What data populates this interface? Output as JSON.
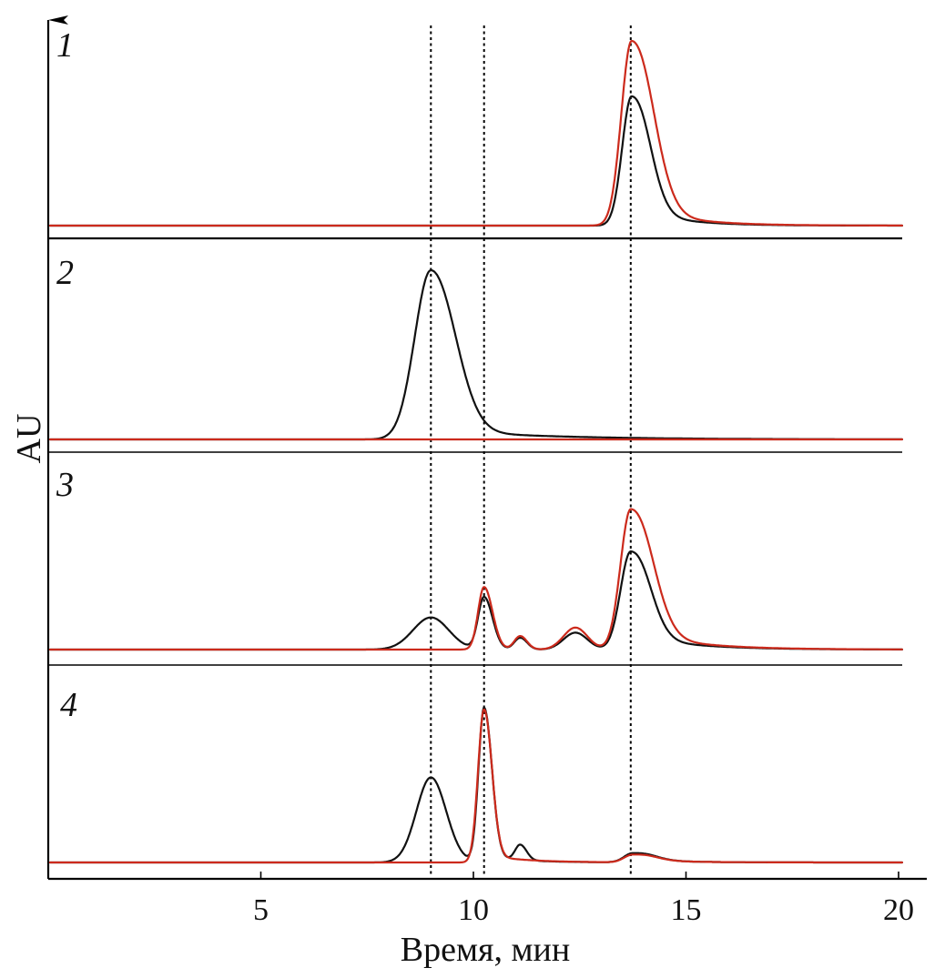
{
  "chart_data": {
    "type": "line",
    "xlabel": "Время, мин",
    "ylabel": "AU",
    "xlim": [
      0,
      20.7
    ],
    "x_ticks": [
      5,
      10,
      15,
      20
    ],
    "reference_lines_x": [
      9.0,
      10.25,
      13.7
    ],
    "series_colors": {
      "black": "#111111",
      "red": "#cc2a1c"
    },
    "panels": [
      {
        "label": "1",
        "traces": [
          {
            "color": "black",
            "baseline": 0.0,
            "peaks": [
              {
                "center": 13.72,
                "height": 0.7,
                "width_left": 0.22,
                "width_right": 0.4,
                "tail": 0.1,
                "tail_decay": 1.0
              }
            ]
          },
          {
            "color": "red",
            "baseline": 0.0,
            "peaks": [
              {
                "center": 13.72,
                "height": 1.0,
                "width_left": 0.24,
                "width_right": 0.48,
                "tail": 0.12,
                "tail_decay": 1.1
              }
            ]
          }
        ]
      },
      {
        "label": "2",
        "traces": [
          {
            "color": "black",
            "baseline": 0.0,
            "peaks": [
              {
                "center": 9.0,
                "height": 1.0,
                "width_left": 0.38,
                "width_right": 0.55,
                "tail": 0.06,
                "tail_decay": 2.5
              }
            ]
          },
          {
            "color": "red",
            "baseline": 0.0,
            "peaks": []
          }
        ]
      },
      {
        "label": "3",
        "traces": [
          {
            "color": "black",
            "baseline": 0.0,
            "peaks": [
              {
                "center": 9.0,
                "height": 0.19,
                "width_left": 0.42,
                "width_right": 0.42,
                "tail": 0,
                "tail_decay": 1
              },
              {
                "center": 10.25,
                "height": 0.31,
                "width_left": 0.14,
                "width_right": 0.2,
                "tail": 0,
                "tail_decay": 1
              },
              {
                "center": 11.1,
                "height": 0.07,
                "width_left": 0.14,
                "width_right": 0.16,
                "tail": 0,
                "tail_decay": 1
              },
              {
                "center": 12.4,
                "height": 0.1,
                "width_left": 0.28,
                "width_right": 0.28,
                "tail": 0,
                "tail_decay": 1
              },
              {
                "center": 13.7,
                "height": 0.58,
                "width_left": 0.24,
                "width_right": 0.42,
                "tail": 0.09,
                "tail_decay": 1.3
              }
            ]
          },
          {
            "color": "red",
            "baseline": 0.0,
            "peaks": [
              {
                "center": 10.25,
                "height": 0.37,
                "width_left": 0.14,
                "width_right": 0.2,
                "tail": 0,
                "tail_decay": 1
              },
              {
                "center": 11.1,
                "height": 0.08,
                "width_left": 0.14,
                "width_right": 0.16,
                "tail": 0,
                "tail_decay": 1
              },
              {
                "center": 12.4,
                "height": 0.13,
                "width_left": 0.28,
                "width_right": 0.28,
                "tail": 0,
                "tail_decay": 1
              },
              {
                "center": 13.7,
                "height": 0.83,
                "width_left": 0.24,
                "width_right": 0.48,
                "tail": 0.12,
                "tail_decay": 1.3
              }
            ]
          }
        ]
      },
      {
        "label": "4",
        "traces": [
          {
            "color": "black",
            "baseline": 0.0,
            "peaks": [
              {
                "center": 9.0,
                "height": 0.55,
                "width_left": 0.34,
                "width_right": 0.36,
                "tail": 0,
                "tail_decay": 1
              },
              {
                "center": 10.25,
                "height": 1.0,
                "width_left": 0.13,
                "width_right": 0.18,
                "tail": 0.04,
                "tail_decay": 0.9
              },
              {
                "center": 11.1,
                "height": 0.1,
                "width_left": 0.12,
                "width_right": 0.15,
                "tail": 0,
                "tail_decay": 1
              },
              {
                "center": 13.75,
                "height": 0.06,
                "width_left": 0.2,
                "width_right": 0.45,
                "tail": 0.02,
                "tail_decay": 1.0
              }
            ]
          },
          {
            "color": "red",
            "baseline": 0.0,
            "peaks": [
              {
                "center": 10.25,
                "height": 0.99,
                "width_left": 0.14,
                "width_right": 0.18,
                "tail": 0.05,
                "tail_decay": 0.9
              },
              {
                "center": 13.75,
                "height": 0.05,
                "width_left": 0.2,
                "width_right": 0.45,
                "tail": 0.02,
                "tail_decay": 1.0
              }
            ]
          }
        ]
      }
    ]
  }
}
